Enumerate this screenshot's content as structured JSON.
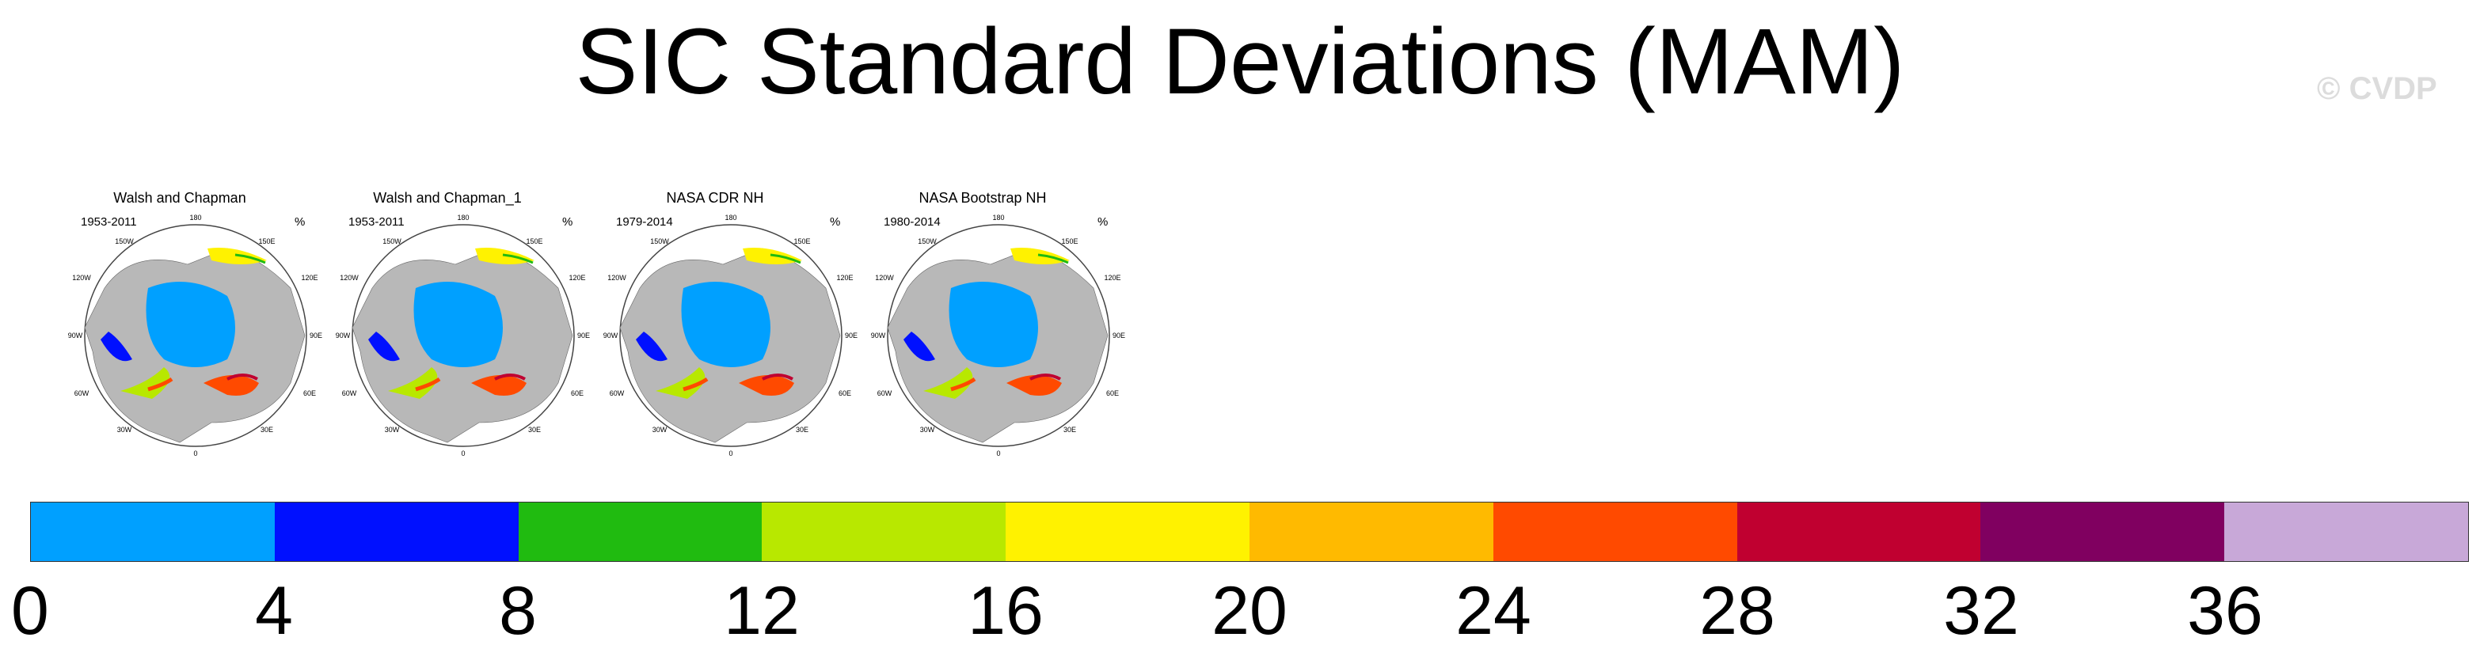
{
  "title": "SIC Standard Deviations (MAM)",
  "watermark": "© CVDP",
  "panels": [
    {
      "title": "Walsh and Chapman",
      "period": "1953-2011",
      "units": "%"
    },
    {
      "title": "Walsh and Chapman_1",
      "period": "1953-2011",
      "units": "%"
    },
    {
      "title": "NASA CDR NH",
      "period": "1979-2014",
      "units": "%"
    },
    {
      "title": "NASA Bootstrap NH",
      "period": "1980-2014",
      "units": "%"
    }
  ],
  "map_labels": {
    "top": "180",
    "tl": "150W",
    "tr": "150E",
    "ul": "120W",
    "ur": "120E",
    "left": "90W",
    "right": "90E",
    "ll": "60W",
    "lr": "60E",
    "bl": "30W",
    "br": "30E",
    "bottom": "0"
  },
  "colorbar": {
    "colors": [
      "#00a0ff",
      "#0010ff",
      "#20bb10",
      "#b8e800",
      "#fff200",
      "#ffba00",
      "#ff4a00",
      "#c00030",
      "#800060",
      "#c8a8d8"
    ],
    "ticks": [
      "0",
      "4",
      "8",
      "12",
      "16",
      "20",
      "24",
      "28",
      "32",
      "36"
    ]
  },
  "map_colors": {
    "land": "#b8b8b8",
    "ocean_low": "#00a0ff"
  }
}
